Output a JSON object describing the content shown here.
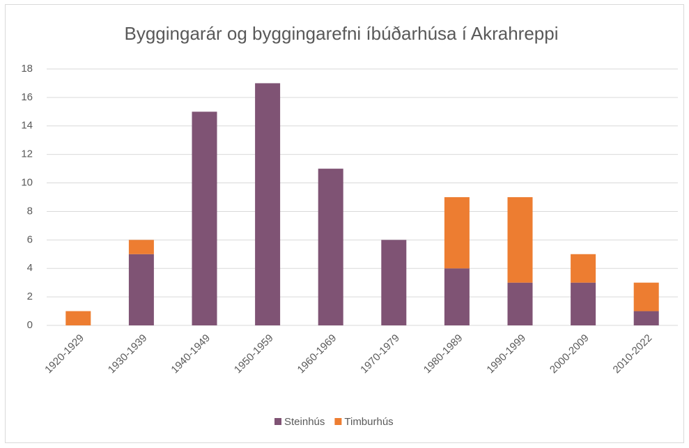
{
  "chart_data": {
    "type": "bar",
    "stacked": true,
    "title": "Byggingarár og byggingarefni íbúðarhúsa í Akrahreppi",
    "categories": [
      "1920-1929",
      "1930-1939",
      "1940-1949",
      "1950-1959",
      "1960-1969",
      "1970-1979",
      "1980-1989",
      "1990-1999",
      "2000-2009",
      "2010-2022"
    ],
    "series": [
      {
        "name": "Steinhús",
        "color": "#7f5374",
        "values": [
          0,
          5,
          15,
          17,
          11,
          6,
          4,
          3,
          3,
          1
        ]
      },
      {
        "name": "Timburhús",
        "color": "#ed7d31",
        "values": [
          1,
          1,
          0,
          0,
          0,
          0,
          5,
          6,
          2,
          2
        ]
      }
    ],
    "ylim": [
      0,
      18
    ],
    "yticks": [
      0,
      2,
      4,
      6,
      8,
      10,
      12,
      14,
      16,
      18
    ],
    "grid": true,
    "legend": "bottom"
  }
}
